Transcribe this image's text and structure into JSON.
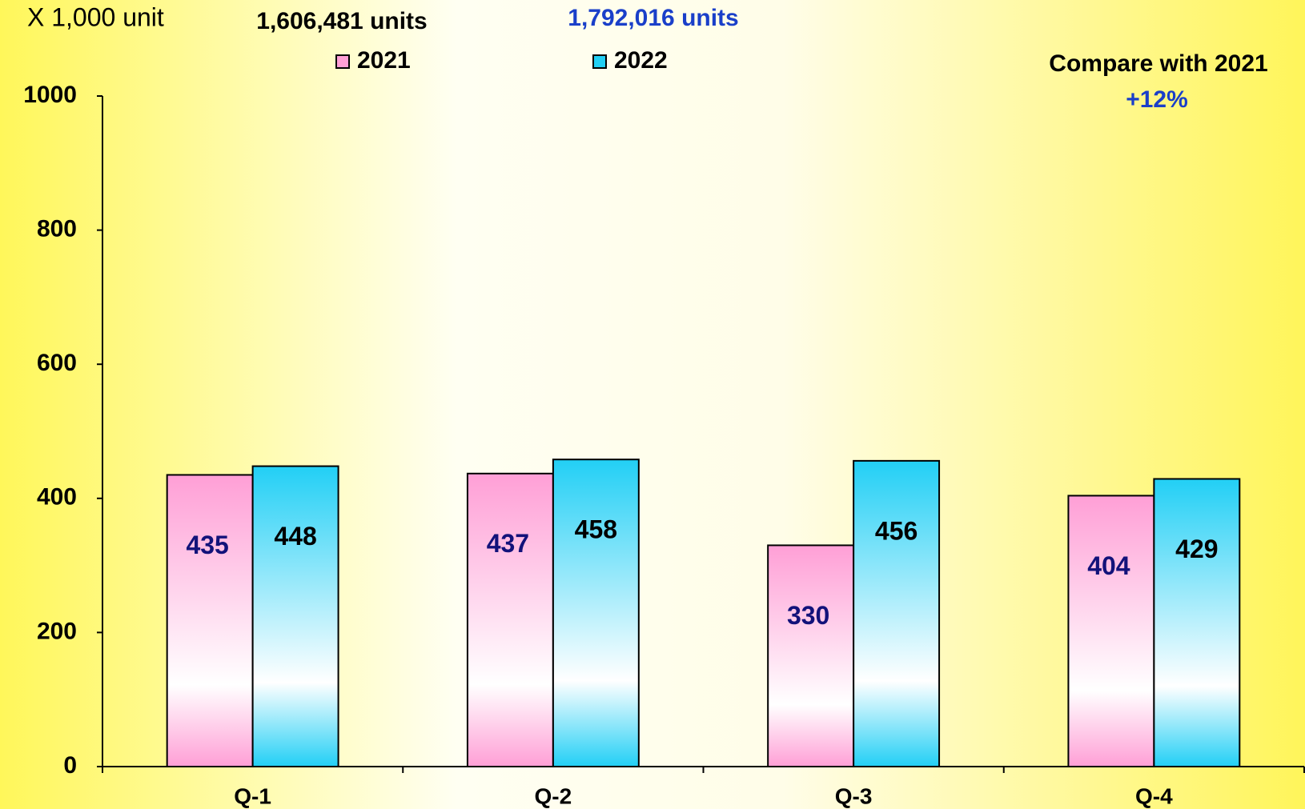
{
  "chart_data": {
    "type": "bar",
    "y_axis_label": "X 1,000 unit",
    "categories": [
      "Q-1",
      "Q-2",
      "Q-3",
      "Q-4"
    ],
    "series": [
      {
        "name": "2021",
        "color": "#ff9fd6",
        "label_color": "#12127a",
        "total": "1,606,481 units",
        "total_color": "#000000",
        "values": [
          435,
          437,
          330,
          404
        ]
      },
      {
        "name": "2022",
        "color": "#22cff5",
        "label_color": "#000000",
        "total": "1,792,016 units",
        "total_color": "#1a3fc9",
        "values": [
          448,
          458,
          456,
          429
        ]
      }
    ],
    "annotation": {
      "text": "Compare with 2021",
      "change": "+12%",
      "change_color": "#1a3fc9"
    },
    "ylim": [
      0,
      1000
    ],
    "yticks": [
      0,
      200,
      400,
      600,
      800,
      1000
    ],
    "grid": false
  }
}
